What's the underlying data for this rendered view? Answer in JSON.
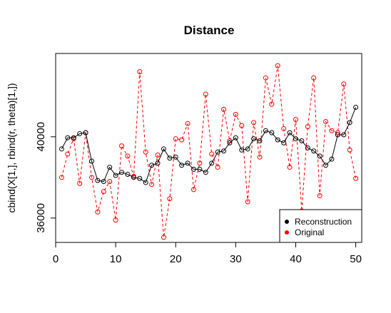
{
  "chart_data": {
    "type": "line",
    "title": "Distance",
    "xlabel": "",
    "ylabel": "cbind(X[1,], rbind(r, theta)[1,])",
    "xlim": [
      0,
      51
    ],
    "ylim": [
      34800,
      44100
    ],
    "x_ticks": [
      0,
      10,
      20,
      30,
      40,
      50
    ],
    "x_tick_labels": [
      "0",
      "10",
      "20",
      "30",
      "40",
      "50"
    ],
    "y_ticks": [
      36000,
      40000
    ],
    "y_tick_labels": [
      "36000",
      "40000"
    ],
    "legend_position": "bottom-right",
    "series": [
      {
        "name": "Reconstruction",
        "color": "#000000",
        "line_style": "solid",
        "marker": "open-circle",
        "x": [
          1,
          2,
          3,
          4,
          5,
          6,
          7,
          8,
          9,
          10,
          11,
          12,
          13,
          14,
          15,
          16,
          17,
          18,
          19,
          20,
          21,
          22,
          23,
          24,
          25,
          26,
          27,
          28,
          29,
          30,
          31,
          32,
          33,
          34,
          35,
          36,
          37,
          38,
          39,
          40,
          41,
          42,
          43,
          44,
          45,
          46,
          47,
          48,
          49,
          50
        ],
        "values": [
          39400,
          39950,
          39950,
          40150,
          40200,
          38800,
          37850,
          37800,
          38500,
          38100,
          38250,
          38150,
          38000,
          37950,
          37750,
          38600,
          38700,
          39400,
          38950,
          39000,
          38600,
          38700,
          38400,
          38400,
          38250,
          38700,
          39250,
          39300,
          39700,
          39950,
          39350,
          39400,
          39900,
          39800,
          40300,
          40200,
          39850,
          39700,
          40200,
          39900,
          39800,
          39450,
          39300,
          39050,
          38600,
          38900,
          40100,
          40100,
          40700,
          41450
        ]
      },
      {
        "name": "Original",
        "color": "#ff0000",
        "line_style": "dashed",
        "marker": "open-circle",
        "x": [
          1,
          2,
          3,
          4,
          5,
          6,
          7,
          8,
          9,
          10,
          11,
          12,
          13,
          14,
          15,
          16,
          17,
          18,
          19,
          20,
          21,
          22,
          23,
          24,
          25,
          26,
          27,
          28,
          29,
          30,
          31,
          32,
          33,
          34,
          35,
          36,
          37,
          38,
          39,
          40,
          41,
          42,
          43,
          44,
          45,
          46,
          47,
          48,
          49,
          50
        ],
        "values": [
          38000,
          39150,
          39900,
          37700,
          40200,
          38000,
          36300,
          37300,
          37800,
          35900,
          39550,
          39050,
          38050,
          43200,
          39250,
          37650,
          39100,
          35050,
          36950,
          39900,
          39850,
          40650,
          37400,
          38700,
          42100,
          39150,
          38500,
          41350,
          39800,
          41100,
          40550,
          36800,
          40700,
          39000,
          42900,
          41600,
          43500,
          40400,
          38500,
          40850,
          36350,
          40500,
          42900,
          37100,
          40750,
          40300,
          40200,
          42600,
          39350,
          37950
        ]
      }
    ]
  }
}
